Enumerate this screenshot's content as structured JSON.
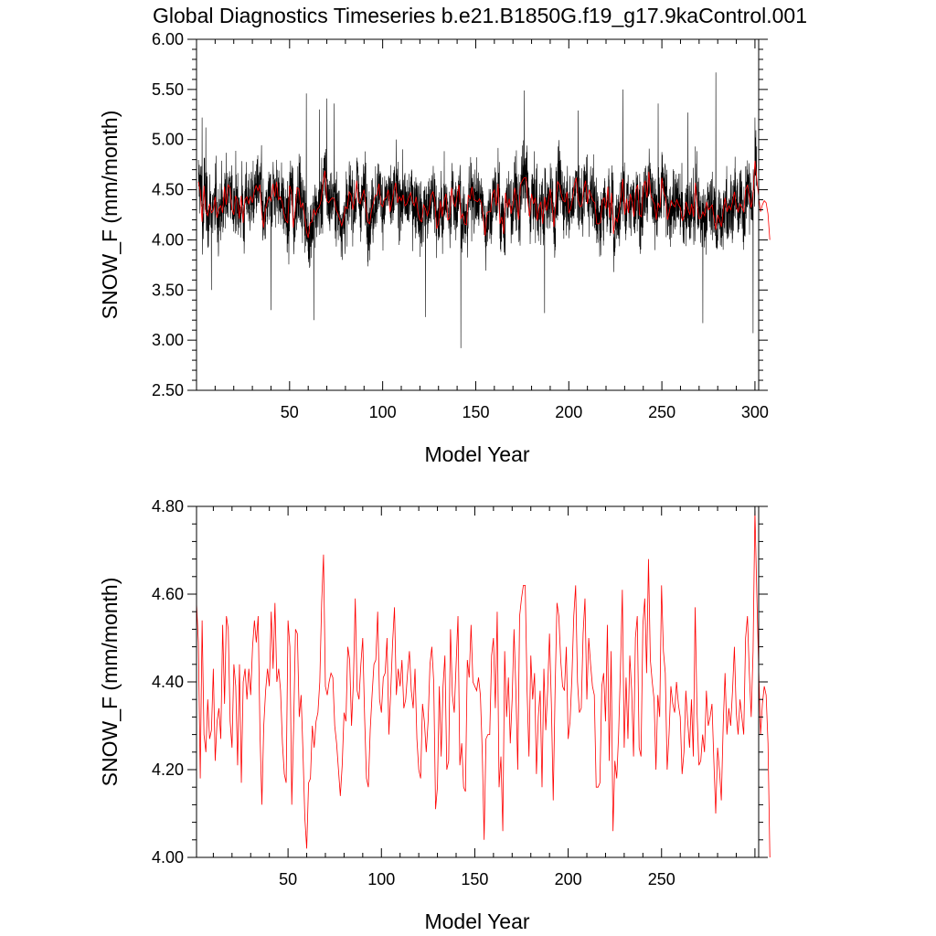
{
  "title": "Global Diagnostics Timeseries b.e21.B1850G.f19_g17.9kaControl.001",
  "colors": {
    "monthly": "#000000",
    "annual": "#ff0000",
    "axes": "#000000"
  },
  "chart_data": [
    {
      "type": "line",
      "xlabel": "Model Year",
      "ylabel": "SNOW_F (mm/month)",
      "xlim": [
        0,
        302
      ],
      "ylim": [
        2.5,
        6.0
      ],
      "xticks": [
        50,
        100,
        150,
        200,
        250,
        300
      ],
      "yticks": [
        "2.50",
        "3.00",
        "3.50",
        "4.00",
        "4.50",
        "5.00",
        "5.50",
        "6.00"
      ],
      "yticks_values": [
        2.5,
        3.0,
        3.5,
        4.0,
        4.5,
        5.0,
        5.5,
        6.0
      ],
      "series": [
        {
          "resolution": "monthly",
          "color": "#000000",
          "x_start": 1,
          "n_per_year": 12,
          "n_points": 3600,
          "note": "dense noisy monthly values around 4.35",
          "baseline_mean": 4.35,
          "min": 2.92,
          "max": 5.67,
          "spikes": [
            {
              "x": 3,
              "y": 5.22
            },
            {
              "x": 5,
              "y": 5.12
            },
            {
              "x": 8,
              "y": 3.5
            },
            {
              "x": 40,
              "y": 3.3
            },
            {
              "x": 59,
              "y": 5.46
            },
            {
              "x": 63,
              "y": 3.2
            },
            {
              "x": 66,
              "y": 5.3
            },
            {
              "x": 70,
              "y": 5.41
            },
            {
              "x": 74,
              "y": 5.36
            },
            {
              "x": 123,
              "y": 3.23
            },
            {
              "x": 142,
              "y": 2.92
            },
            {
              "x": 176,
              "y": 5.49
            },
            {
              "x": 187,
              "y": 3.27
            },
            {
              "x": 205,
              "y": 5.29
            },
            {
              "x": 229,
              "y": 5.5
            },
            {
              "x": 248,
              "y": 5.36
            },
            {
              "x": 264,
              "y": 5.27
            },
            {
              "x": 272,
              "y": 3.17
            },
            {
              "x": 279,
              "y": 5.67
            },
            {
              "x": 300,
              "y": 5.22
            },
            {
              "x": 299,
              "y": 3.07
            }
          ]
        },
        {
          "resolution": "annual",
          "color": "#ff0000",
          "x": [
            1,
            300
          ],
          "note": "annual means, same as lower panel"
        }
      ]
    },
    {
      "type": "line",
      "xlabel": "Model Year",
      "ylabel": "SNOW_F (mm/month)",
      "xlim": [
        1,
        302
      ],
      "ylim": [
        4.0,
        4.8
      ],
      "xticks": [
        50,
        100,
        150,
        200,
        250
      ],
      "yticks": [
        "4.00",
        "4.20",
        "4.40",
        "4.60",
        "4.80"
      ],
      "yticks_values": [
        4.0,
        4.2,
        4.4,
        4.6,
        4.8
      ],
      "series": [
        {
          "resolution": "annual",
          "color": "#ff0000",
          "x_start": 1,
          "values": [
            4.58,
            4.49,
            4.18,
            4.54,
            4.28,
            4.24,
            4.36,
            4.27,
            4.29,
            4.43,
            4.22,
            4.31,
            4.34,
            4.27,
            4.53,
            4.35,
            4.55,
            4.52,
            4.31,
            4.25,
            4.44,
            4.39,
            4.21,
            4.44,
            4.17,
            4.4,
            4.43,
            4.36,
            4.43,
            4.37,
            4.48,
            4.54,
            4.49,
            4.55,
            4.28,
            4.12,
            4.3,
            4.38,
            4.43,
            4.39,
            4.56,
            4.43,
            4.58,
            4.4,
            4.43,
            4.38,
            4.26,
            4.19,
            4.17,
            4.54,
            4.48,
            4.12,
            4.3,
            4.52,
            4.51,
            4.32,
            4.37,
            4.24,
            4.09,
            4.02,
            4.17,
            4.18,
            4.3,
            4.25,
            4.31,
            4.33,
            4.4,
            4.58,
            4.69,
            4.39,
            4.37,
            4.4,
            4.42,
            4.41,
            4.3,
            4.26,
            4.2,
            4.14,
            4.21,
            4.33,
            4.31,
            4.48,
            4.45,
            4.3,
            4.4,
            4.59,
            4.38,
            4.36,
            4.44,
            4.5,
            4.32,
            4.18,
            4.16,
            4.29,
            4.37,
            4.44,
            4.45,
            4.56,
            4.36,
            4.33,
            4.41,
            4.42,
            4.5,
            4.28,
            4.38,
            4.49,
            4.57,
            4.37,
            4.43,
            4.39,
            4.45,
            4.34,
            4.36,
            4.42,
            4.47,
            4.38,
            4.34,
            4.43,
            4.27,
            4.2,
            4.18,
            4.35,
            4.31,
            4.24,
            4.31,
            4.44,
            4.48,
            4.4,
            4.11,
            4.16,
            4.39,
            4.23,
            4.39,
            4.46,
            4.2,
            4.22,
            4.52,
            4.37,
            4.33,
            4.44,
            4.55,
            4.21,
            4.26,
            4.16,
            4.15,
            4.45,
            4.41,
            4.53,
            4.4,
            4.39,
            4.38,
            4.41,
            4.37,
            4.24,
            4.04,
            4.27,
            4.28,
            4.28,
            4.46,
            4.5,
            4.34,
            4.56,
            4.16,
            4.23,
            4.06,
            4.47,
            4.32,
            4.41,
            4.26,
            4.36,
            4.52,
            4.38,
            4.2,
            4.55,
            4.59,
            4.62,
            4.62,
            4.38,
            4.23,
            4.46,
            4.36,
            4.42,
            4.19,
            4.32,
            4.38,
            4.16,
            4.43,
            4.29,
            4.38,
            4.51,
            4.35,
            4.13,
            4.38,
            4.58,
            4.55,
            4.45,
            4.39,
            4.38,
            4.48,
            4.27,
            4.31,
            4.41,
            4.55,
            4.62,
            4.4,
            4.33,
            4.34,
            4.51,
            4.59,
            4.36,
            4.5,
            4.44,
            4.39,
            4.37,
            4.16,
            4.16,
            4.17,
            4.39,
            4.42,
            4.31,
            4.53,
            4.22,
            4.47,
            4.06,
            4.22,
            4.18,
            4.28,
            4.43,
            4.61,
            4.25,
            4.41,
            4.27,
            4.46,
            4.38,
            4.23,
            4.5,
            4.55,
            4.25,
            4.23,
            4.53,
            4.59,
            4.42,
            4.68,
            4.45,
            4.4,
            4.36,
            4.2,
            4.37,
            4.32,
            4.62,
            4.47,
            4.42,
            4.2,
            4.28,
            4.39,
            4.35,
            4.33,
            4.4,
            4.35,
            4.32,
            4.19,
            4.24,
            4.38,
            4.31,
            4.25,
            4.36,
            4.23,
            4.57,
            4.33,
            4.21,
            4.22,
            4.28,
            4.24,
            4.38,
            4.3,
            4.32,
            4.35,
            4.22,
            4.1,
            4.25,
            4.2,
            4.13,
            4.3,
            4.42,
            4.28,
            4.34,
            4.3,
            4.38,
            4.48,
            4.33,
            4.28,
            4.36,
            4.32,
            4.28,
            4.5,
            4.55,
            4.42,
            4.32,
            4.47,
            4.79,
            4.6,
            4.43,
            4.28,
            4.35,
            4.39,
            4.37,
            4.26,
            4.0
          ]
        }
      ]
    }
  ]
}
